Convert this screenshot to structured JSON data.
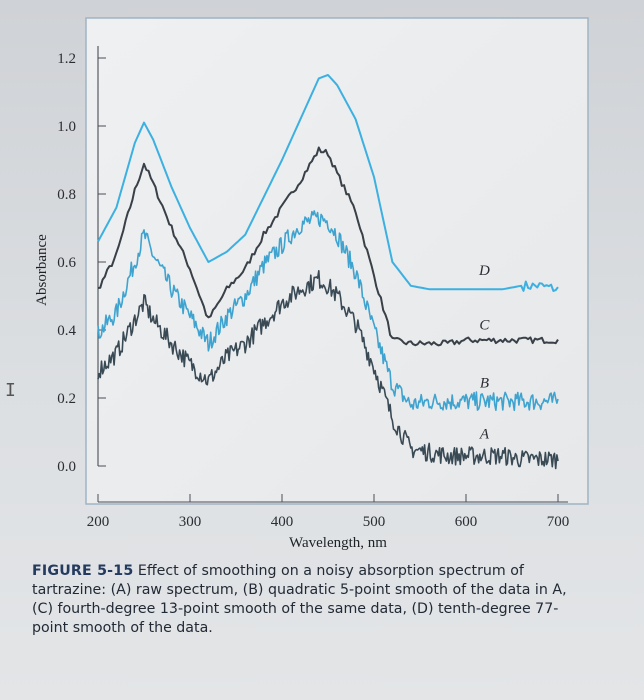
{
  "chart_data": {
    "type": "line",
    "xlabel": "Wavelength, nm",
    "ylabel": "Absorbance",
    "xlim": [
      200,
      700
    ],
    "ylim": [
      0.0,
      1.2
    ],
    "x_ticks": [
      "200",
      "300",
      "400",
      "500",
      "600",
      "700"
    ],
    "y_ticks": [
      "0.0",
      "0.2",
      "0.4",
      "0.6",
      "0.8",
      "1.0",
      "1.2"
    ],
    "grid": false,
    "x": [
      200,
      220,
      240,
      250,
      260,
      280,
      300,
      320,
      340,
      360,
      380,
      400,
      420,
      440,
      450,
      460,
      480,
      500,
      520,
      540,
      560,
      580,
      600,
      620,
      640,
      660,
      680,
      700
    ],
    "series": [
      {
        "name": "A",
        "color": "#3a4a55",
        "noisy": true,
        "values": [
          0.28,
          0.33,
          0.43,
          0.48,
          0.43,
          0.36,
          0.3,
          0.25,
          0.32,
          0.36,
          0.42,
          0.48,
          0.52,
          0.55,
          0.53,
          0.5,
          0.42,
          0.29,
          0.14,
          0.05,
          0.04,
          0.03,
          0.03,
          0.03,
          0.03,
          0.02,
          0.02,
          0.02
        ]
      },
      {
        "name": "B",
        "color": "#3fa3cf",
        "noisy": true,
        "values": [
          0.39,
          0.45,
          0.6,
          0.68,
          0.62,
          0.52,
          0.44,
          0.36,
          0.44,
          0.5,
          0.59,
          0.65,
          0.71,
          0.73,
          0.72,
          0.68,
          0.57,
          0.4,
          0.24,
          0.18,
          0.19,
          0.19,
          0.19,
          0.19,
          0.19,
          0.19,
          0.19,
          0.19
        ]
      },
      {
        "name": "C",
        "color": "#3a4048",
        "noisy": false,
        "values": [
          0.52,
          0.62,
          0.81,
          0.89,
          0.83,
          0.7,
          0.58,
          0.43,
          0.52,
          0.58,
          0.68,
          0.76,
          0.84,
          0.93,
          0.92,
          0.86,
          0.75,
          0.56,
          0.37,
          0.36,
          0.36,
          0.36,
          0.37,
          0.37,
          0.37,
          0.37,
          0.37,
          0.37
        ]
      },
      {
        "name": "D",
        "color": "#3cb0e0",
        "noisy": false,
        "values": [
          0.66,
          0.76,
          0.95,
          1.01,
          0.96,
          0.82,
          0.7,
          0.6,
          0.63,
          0.68,
          0.79,
          0.9,
          1.02,
          1.14,
          1.15,
          1.12,
          1.02,
          0.85,
          0.6,
          0.53,
          0.52,
          0.52,
          0.52,
          0.52,
          0.52,
          0.53,
          0.53,
          0.52
        ]
      }
    ],
    "curve_labels": [
      "D",
      "C",
      "B",
      "A"
    ]
  },
  "caption": {
    "figure_number": "FIGURE 5-15",
    "text": " Effect of smoothing on a noisy absorption spectrum of tartrazine: (A) raw spectrum, (B) quadratic 5-point smooth of the data in A, (C) fourth-degree 13-point smooth of the same data, (D) tenth-degree 77-point smooth of the data."
  },
  "cursor_glyph": "I"
}
